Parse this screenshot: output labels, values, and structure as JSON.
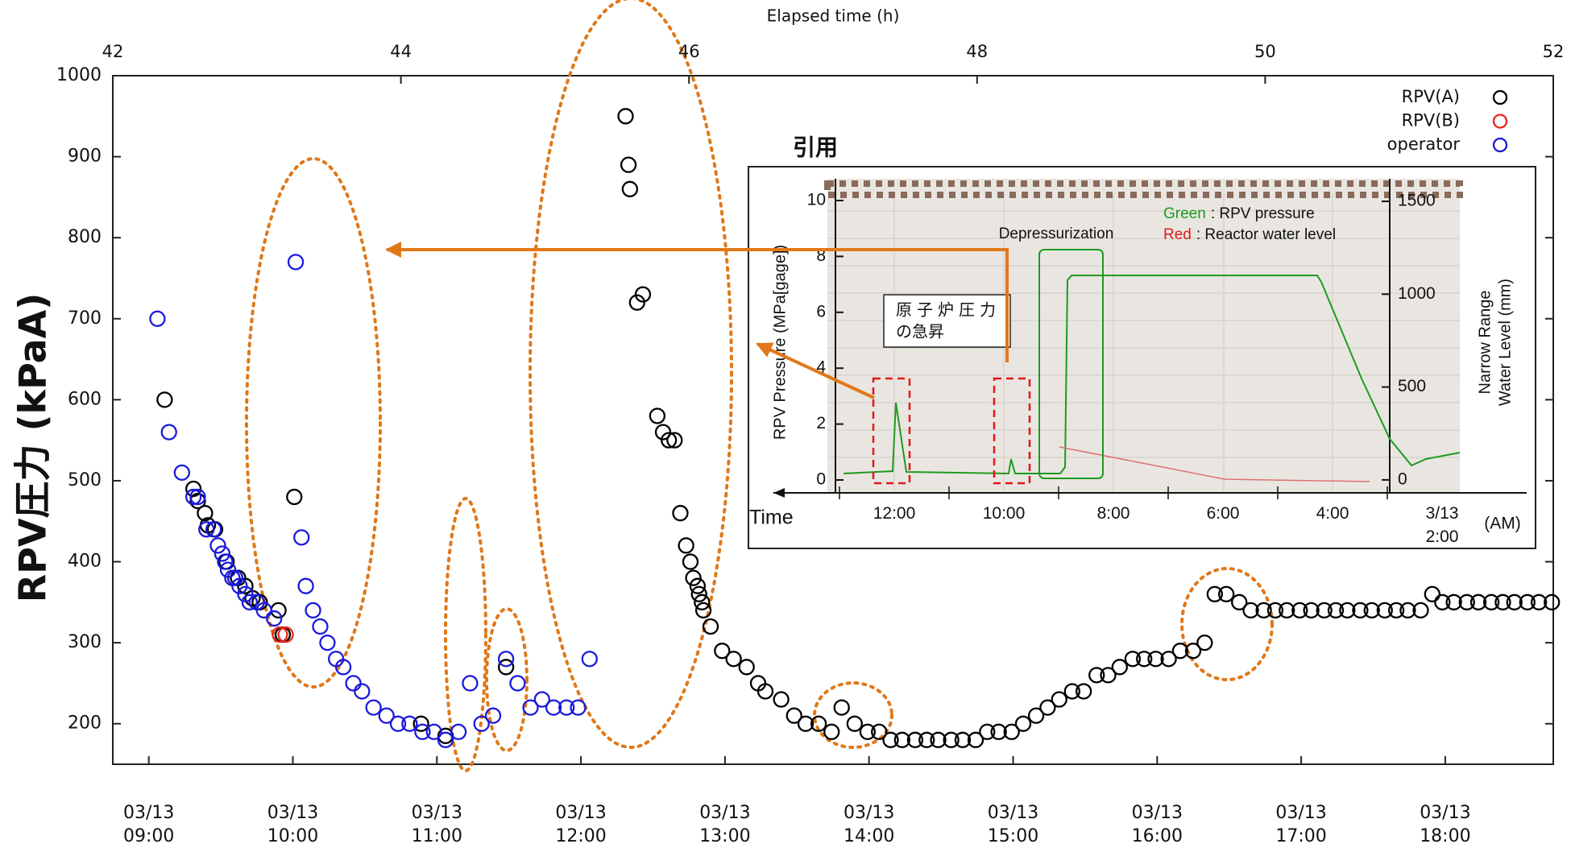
{
  "chart_data": {
    "type": "scatter",
    "x_label": "Elapsed time (h)",
    "y_label": "RPV圧力 (kPaA)",
    "xlim": [
      42,
      52
    ],
    "xticks": [
      42,
      44,
      46,
      48,
      50,
      52
    ],
    "x2ticks": [
      {
        "value": 42.25,
        "label": "03/13 09:00"
      },
      {
        "value": 43.25,
        "label": "03/13 10:00"
      },
      {
        "value": 44.25,
        "label": "03/13 11:00"
      },
      {
        "value": 45.25,
        "label": "03/13 12:00"
      },
      {
        "value": 46.25,
        "label": "03/13 13:00"
      },
      {
        "value": 47.25,
        "label": "03/13 14:00"
      },
      {
        "value": 48.25,
        "label": "03/13 15:00"
      },
      {
        "value": 49.25,
        "label": "03/13 16:00"
      },
      {
        "value": 50.25,
        "label": "03/13 17:00"
      },
      {
        "value": 51.25,
        "label": "03/13 18:00"
      }
    ],
    "ylim": [
      150,
      1000
    ],
    "yticks": [
      200,
      300,
      400,
      500,
      600,
      700,
      800,
      900,
      1000
    ],
    "legend": "upper right",
    "series": [
      {
        "name": "RPV(A)",
        "color": "#000000",
        "x": [
          42.36,
          42.56,
          42.59,
          42.64,
          42.66,
          42.71,
          42.79,
          42.87,
          42.92,
          42.97,
          43.02,
          43.15,
          43.18,
          43.26,
          44.14,
          44.31,
          44.73,
          45.56,
          45.58,
          45.59,
          45.64,
          45.68,
          45.78,
          45.82,
          45.86,
          45.9,
          45.94,
          45.98,
          46.01,
          46.03,
          46.06,
          46.07,
          46.09,
          46.1,
          46.15,
          46.23,
          46.31,
          46.4,
          46.48,
          46.53,
          46.64,
          46.73,
          46.81,
          46.9,
          46.99,
          47.06,
          47.15,
          47.24,
          47.32,
          47.4,
          47.48,
          47.57,
          47.65,
          47.73,
          47.82,
          47.9,
          47.99,
          48.07,
          48.15,
          48.24,
          48.32,
          48.41,
          48.49,
          48.57,
          48.66,
          48.74,
          48.83,
          48.91,
          48.99,
          49.08,
          49.16,
          49.24,
          49.33,
          49.41,
          49.5,
          49.58,
          49.65,
          49.73,
          49.82,
          49.9,
          49.99,
          50.07,
          50.15,
          50.24,
          50.32,
          50.41,
          50.49,
          50.57,
          50.66,
          50.74,
          50.83,
          50.91,
          50.99,
          51.08,
          51.16,
          51.23,
          51.31,
          51.4,
          51.48,
          51.57,
          51.65,
          51.73,
          51.82,
          51.9,
          51.99
        ],
        "values": [
          600,
          490,
          475,
          460,
          445,
          440,
          400,
          380,
          370,
          355,
          350,
          340,
          310,
          480,
          200,
          185,
          270,
          950,
          890,
          860,
          720,
          730,
          580,
          560,
          550,
          550,
          460,
          420,
          400,
          380,
          370,
          360,
          350,
          340,
          320,
          290,
          280,
          270,
          250,
          240,
          230,
          210,
          200,
          200,
          190,
          220,
          200,
          190,
          190,
          180,
          180,
          180,
          180,
          180,
          180,
          180,
          180,
          190,
          190,
          190,
          200,
          210,
          220,
          230,
          240,
          240,
          260,
          260,
          270,
          280,
          280,
          280,
          280,
          290,
          290,
          300,
          360,
          360,
          350,
          340,
          340,
          340,
          340,
          340,
          340,
          340,
          340,
          340,
          340,
          340,
          340,
          340,
          340,
          340,
          360,
          350,
          350,
          350,
          350,
          350,
          350,
          350,
          350,
          350,
          350
        ]
      },
      {
        "name": "RPV(B)",
        "color": "#e8261c",
        "x": [
          43.16,
          43.2
        ],
        "values": [
          310,
          310
        ]
      },
      {
        "name": "operator",
        "color": "#1a1adc",
        "x": [
          42.31,
          42.39,
          42.48,
          42.56,
          42.59,
          42.65,
          42.7,
          42.73,
          42.76,
          42.78,
          42.8,
          42.83,
          42.85,
          42.88,
          42.92,
          42.95,
          43.0,
          43.05,
          43.12,
          43.27,
          43.31,
          43.34,
          43.39,
          43.44,
          43.49,
          43.55,
          43.6,
          43.67,
          43.73,
          43.81,
          43.9,
          43.98,
          44.06,
          44.15,
          44.23,
          44.31,
          44.4,
          44.48,
          44.56,
          44.64,
          44.73,
          44.81,
          44.9,
          44.98,
          45.06,
          45.15,
          45.23,
          45.31
        ],
        "values": [
          700,
          560,
          510,
          480,
          480,
          440,
          440,
          420,
          410,
          400,
          390,
          380,
          380,
          370,
          360,
          350,
          350,
          340,
          330,
          770,
          430,
          370,
          340,
          320,
          300,
          280,
          270,
          250,
          240,
          220,
          210,
          200,
          200,
          190,
          190,
          180,
          190,
          250,
          200,
          210,
          280,
          250,
          220,
          230,
          220,
          220,
          220,
          280
        ]
      }
    ]
  },
  "inset": {
    "caption": "引用",
    "y_label": "RPV Pressure (MPa[gage])",
    "y_ticks": [
      "10",
      "8",
      "6",
      "4",
      "2",
      "0"
    ],
    "y2_label": [
      "Narrow Range",
      "Water Level (mm)"
    ],
    "y2_ticks": [
      "1500",
      "1000",
      "500",
      "0"
    ],
    "x_label": "Time",
    "x_ticks": [
      "12:00",
      "10:00",
      "8:00",
      "6:00",
      "4:00",
      "3/13 2:00"
    ],
    "x_unit": "(AM)",
    "annotation": "Depressurization",
    "callout": [
      "原子炉圧力",
      "の急昇"
    ],
    "key": [
      {
        "word": "Green",
        "color": "#1f9a1f",
        "text": ": RPV pressure"
      },
      {
        "word": "Red",
        "color": "#e01818",
        "text": ": Reactor water level"
      }
    ]
  }
}
